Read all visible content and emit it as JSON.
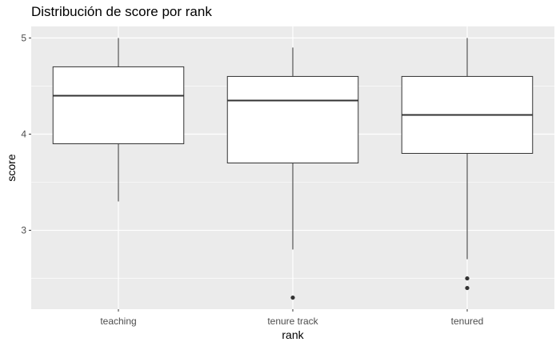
{
  "chart_data": {
    "type": "boxplot",
    "title": "Distribución de score por rank",
    "xlabel": "rank",
    "ylabel": "score",
    "categories": [
      "teaching",
      "tenure track",
      "tenured"
    ],
    "boxes": [
      {
        "category": "teaching",
        "whisker_low": 3.3,
        "q1": 3.9,
        "median": 4.4,
        "q3": 4.7,
        "whisker_high": 5.0,
        "outliers": []
      },
      {
        "category": "tenure track",
        "whisker_low": 2.8,
        "q1": 3.7,
        "median": 4.35,
        "q3": 4.6,
        "whisker_high": 4.9,
        "outliers": [
          2.3
        ]
      },
      {
        "category": "tenured",
        "whisker_low": 2.7,
        "q1": 3.8,
        "median": 4.2,
        "q3": 4.6,
        "whisker_high": 5.0,
        "outliers": [
          2.4,
          2.5
        ]
      }
    ],
    "yticks": [
      3,
      4,
      5
    ],
    "ylim": [
      2.18,
      5.12
    ],
    "grid": true,
    "colors": {
      "panel": "#ebebeb",
      "grid_major": "#ffffff",
      "box_fill": "#ffffff",
      "box_line": "#333333",
      "tick_text": "#4d4d4d"
    }
  }
}
